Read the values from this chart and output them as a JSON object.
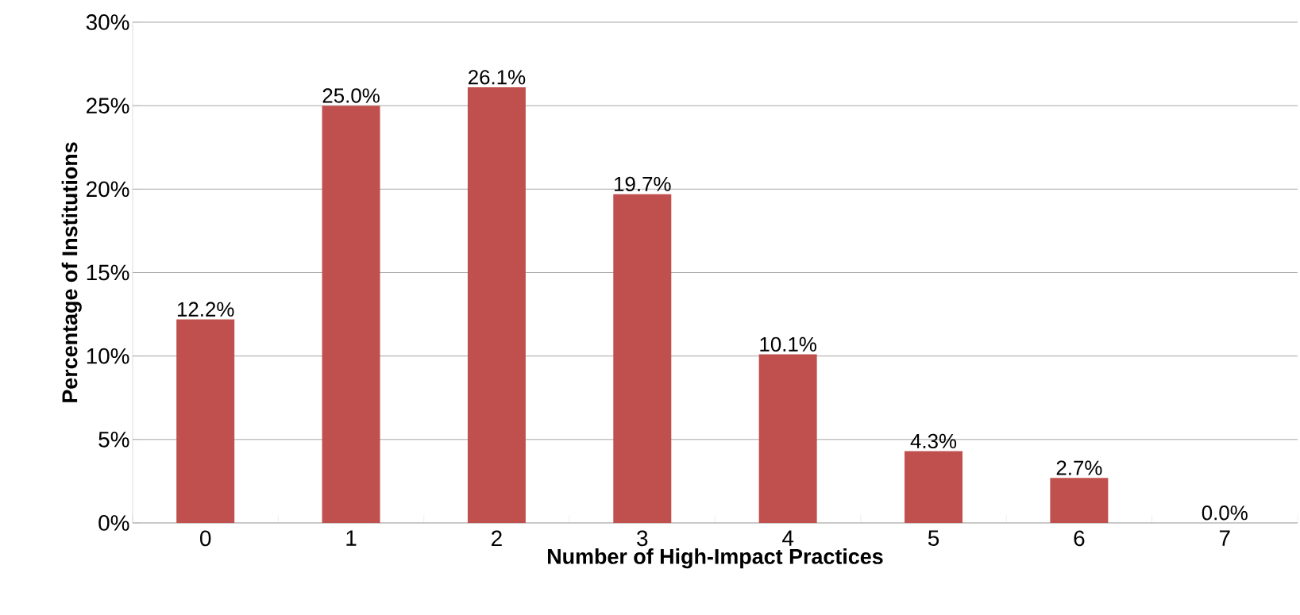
{
  "chart_data": {
    "type": "bar",
    "xlabel": "Number of High-Impact Practices",
    "ylabel": "Percentage of Institutions",
    "categories": [
      "0",
      "1",
      "2",
      "3",
      "4",
      "5",
      "6",
      "7"
    ],
    "values": [
      12.2,
      25.0,
      26.1,
      19.7,
      10.1,
      4.3,
      2.7,
      0.0
    ],
    "value_labels": [
      "12.2%",
      "25.0%",
      "26.1%",
      "19.7%",
      "10.1%",
      "4.3%",
      "2.7%",
      "0.0%"
    ],
    "color": "#c0504d",
    "ylim": [
      0,
      30
    ],
    "yticks": [
      {
        "value": 0,
        "label": "0%"
      },
      {
        "value": 5,
        "label": "5%"
      },
      {
        "value": 10,
        "label": "10%"
      },
      {
        "value": 15,
        "label": "15%"
      },
      {
        "value": 20,
        "label": "20%"
      },
      {
        "value": 25,
        "label": "25%"
      },
      {
        "value": 30,
        "label": "30%"
      }
    ],
    "grid": "y"
  }
}
